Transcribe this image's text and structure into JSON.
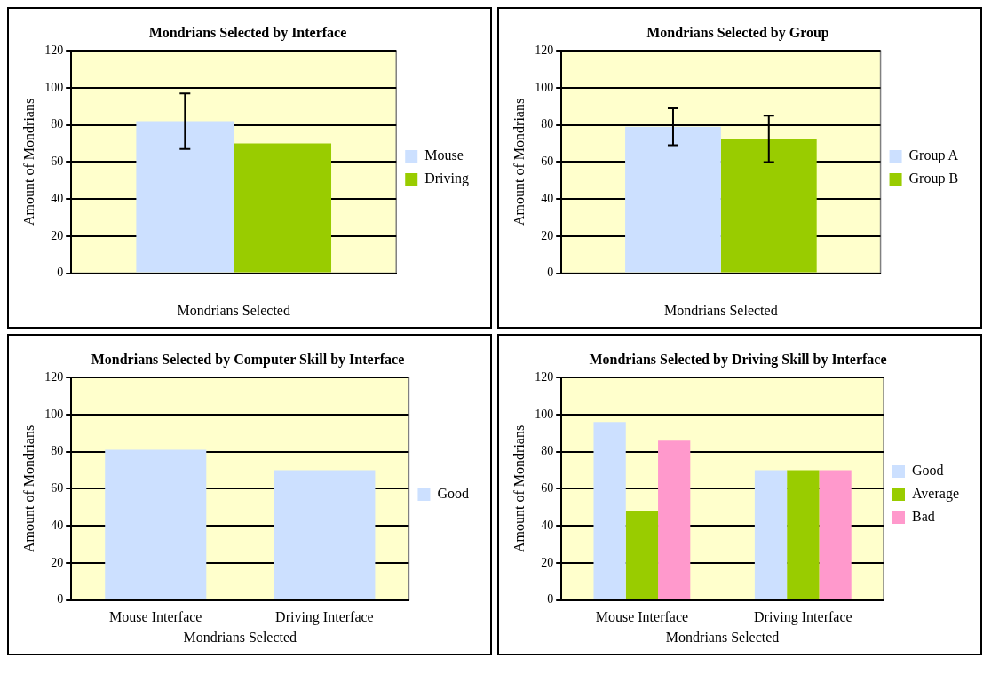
{
  "chart_data": [
    {
      "type": "bar",
      "title": "Mondrians Selected by Interface",
      "xlabel": "Mondrians Selected",
      "ylabel": "Amount of Mondrians",
      "categories": [
        null
      ],
      "series": [
        {
          "name": "Mouse",
          "color": "#cce0ff",
          "values": [
            82
          ],
          "errors": [
            [
              67,
              97
            ]
          ]
        },
        {
          "name": "Driving",
          "color": "#99cc00",
          "values": [
            70
          ]
        }
      ],
      "ylim": [
        0,
        120
      ],
      "yticks": [
        0,
        20,
        40,
        60,
        80,
        100,
        120
      ],
      "grid": "y",
      "legend": "right"
    },
    {
      "type": "bar",
      "title": "Mondrians Selected by Group",
      "xlabel": "Mondrians Selected",
      "ylabel": "Amount of Mondrians",
      "categories": [
        null
      ],
      "series": [
        {
          "name": "Group A",
          "color": "#cce0ff",
          "values": [
            79
          ],
          "errors": [
            [
              69,
              89
            ]
          ]
        },
        {
          "name": "Group B",
          "color": "#99cc00",
          "values": [
            72.5
          ],
          "errors": [
            [
              60,
              85
            ]
          ]
        }
      ],
      "ylim": [
        0,
        120
      ],
      "yticks": [
        0,
        20,
        40,
        60,
        80,
        100,
        120
      ],
      "grid": "y",
      "legend": "right"
    },
    {
      "type": "bar",
      "title": "Mondrians Selected by Computer Skill by Interface",
      "xlabel": "Mondrians Selected",
      "ylabel": "Amount of Mondrians",
      "categories": [
        "Mouse Interface",
        "Driving Interface"
      ],
      "series": [
        {
          "name": "Good",
          "color": "#cce0ff",
          "values": [
            81,
            70
          ]
        }
      ],
      "ylim": [
        0,
        120
      ],
      "yticks": [
        0,
        20,
        40,
        60,
        80,
        100,
        120
      ],
      "grid": "y",
      "legend": "right"
    },
    {
      "type": "bar",
      "title": "Mondrians Selected by Driving Skill by Interface",
      "xlabel": "Mondrians Selected",
      "ylabel": "Amount of Mondrians",
      "categories": [
        "Mouse Interface",
        "Driving Interface"
      ],
      "series": [
        {
          "name": "Good",
          "color": "#cce0ff",
          "values": [
            96,
            70
          ]
        },
        {
          "name": "Average",
          "color": "#99cc00",
          "values": [
            48,
            70
          ]
        },
        {
          "name": "Bad",
          "color": "#ff99cc",
          "values": [
            86,
            70
          ]
        }
      ],
      "ylim": [
        0,
        120
      ],
      "yticks": [
        0,
        20,
        40,
        60,
        80,
        100,
        120
      ],
      "grid": "y",
      "legend": "right"
    }
  ]
}
